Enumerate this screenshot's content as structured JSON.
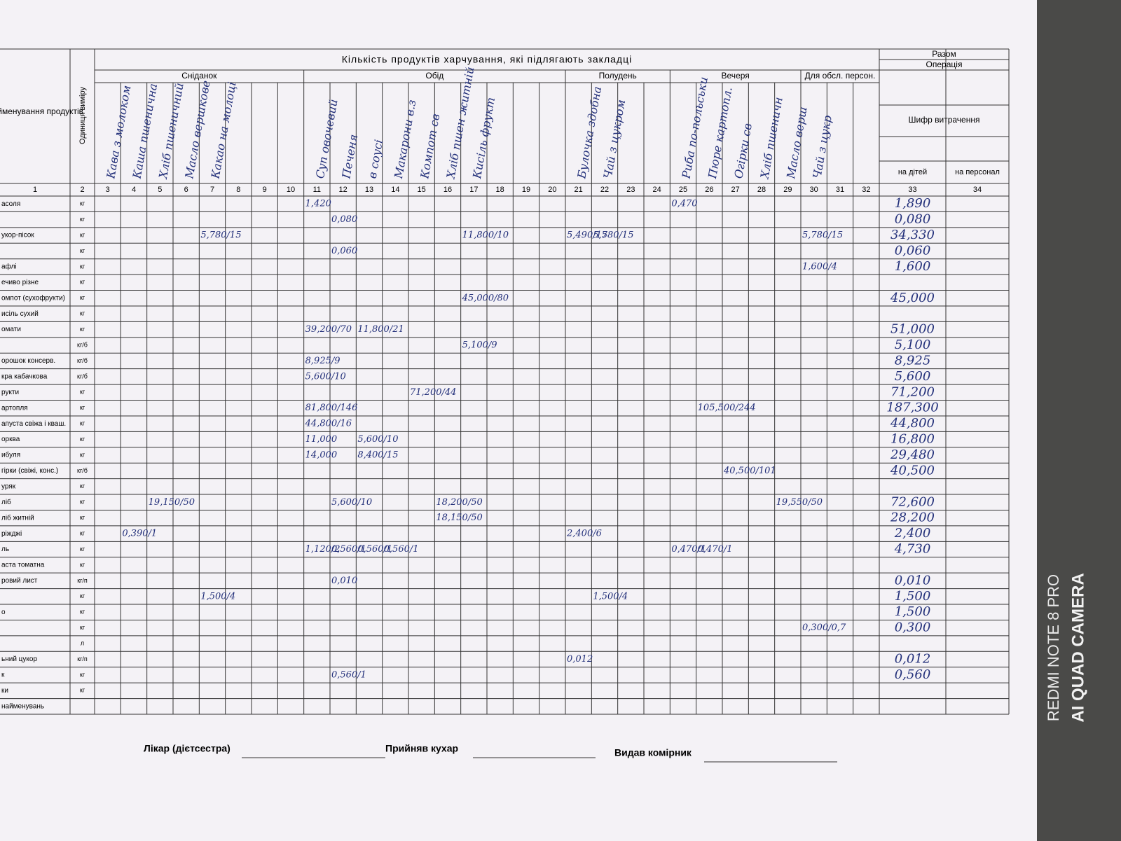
{
  "header": {
    "title": "Кількість продуктів харчування, які підлягають закладці",
    "name_col": "Найменування продуктів",
    "unit_col": "Одиниця виміру",
    "meals": [
      "Сніданок",
      "Обід",
      "Полудень",
      "Вечеря",
      "Для обсл. персон."
    ],
    "total": "Разом",
    "operation": "Операція",
    "code": "Шифр витрачення",
    "for_children": "на дітей",
    "for_staff": "на персонал",
    "column_numbers": [
      "1",
      "2",
      "3",
      "4",
      "5",
      "6",
      "7",
      "8",
      "9",
      "10",
      "11",
      "12",
      "13",
      "14",
      "15",
      "16",
      "17",
      "18",
      "19",
      "20",
      "21",
      "22",
      "23",
      "24",
      "25",
      "26",
      "27",
      "28",
      "29",
      "30",
      "31",
      "32",
      "33",
      "34"
    ],
    "dishes": {
      "3": "Кава з молоком",
      "4": "Каша пшенична",
      "5": "Хліб пшеничний",
      "6": "Масло вершкове",
      "7": "Какао на молоці",
      "11": "Суп овочевий",
      "12": "Печеня",
      "13": "в соусі",
      "14": "Макарони в.з",
      "15": "Компот св",
      "16": "Хліб пшен житній",
      "17": "Кисіль фрукт",
      "21": "Булочка здобна",
      "22": "Чай з цукром",
      "25": "Риба по-польськи",
      "26": "Пюре картопл.",
      "27": "Огірки св",
      "28": "Хліб пшеничн",
      "29": "Масло верш",
      "30": "Чай з цукр"
    }
  },
  "rows": [
    {
      "name": "асоля",
      "unit": "кг",
      "total": "1,890",
      "entries": {
        "11": "1,420",
        "25": "0,470"
      }
    },
    {
      "unit": "кг",
      "total": "0,080",
      "entries": {
        "12": "0,080"
      }
    },
    {
      "name": "укор-пісок",
      "unit": "кг",
      "total": "34,330",
      "entries": {
        "7": "5,780/15",
        "17": "11,800/10",
        "21": "5,490/15",
        "22": "5,780/15",
        "30": "5,780/15"
      }
    },
    {
      "unit": "кг",
      "total": "0,060",
      "entries": {
        "12": "0,060"
      }
    },
    {
      "name": "афлі",
      "unit": "кг",
      "total": "1,600",
      "entries": {
        "30": "1,600/4"
      }
    },
    {
      "name": "ечиво різне",
      "unit": "кг"
    },
    {
      "name": "омпот (сухофрукти)",
      "unit": "кг",
      "total": "45,000",
      "entries": {
        "17": "45,000/80"
      }
    },
    {
      "name": "исіль сухий",
      "unit": "кг"
    },
    {
      "name": "омати",
      "unit": "кг",
      "total": "51,000",
      "entries": {
        "11": "39,200/70",
        "13": "11,800/21"
      }
    },
    {
      "unit": "кг/б",
      "total": "5,100",
      "entries": {
        "17": "5,100/9"
      }
    },
    {
      "name": "орошок консерв.",
      "unit": "кг/б",
      "total": "8,925",
      "entries": {
        "11": "8,925/9"
      }
    },
    {
      "name": "кра кабачкова",
      "unit": "кг/б",
      "total": "5,600",
      "entries": {
        "11": "5,600/10"
      }
    },
    {
      "name": "рукти",
      "unit": "кг",
      "total": "71,200",
      "entries": {
        "15": "71,200/44"
      }
    },
    {
      "name": "артопля",
      "unit": "кг",
      "total": "187,300",
      "entries": {
        "11": "81,800/146",
        "26": "105,500/244"
      }
    },
    {
      "name": "апуста свіжа і кваш.",
      "unit": "кг",
      "total": "44,800",
      "entries": {
        "11": "44,800/16"
      }
    },
    {
      "name": "орква",
      "unit": "кг",
      "total": "16,800",
      "entries": {
        "11": "11,000",
        "13": "5,600/10"
      }
    },
    {
      "name": "ибуля",
      "unit": "кг",
      "total": "29,480",
      "entries": {
        "11": "14,000",
        "13": "8,400/15"
      }
    },
    {
      "name": "гірки (свіжі, конс.)",
      "unit": "кг/б",
      "total": "40,500",
      "entries": {
        "27": "40,500/101"
      }
    },
    {
      "name": "уряк",
      "unit": "кг"
    },
    {
      "name": "ліб",
      "unit": "кг",
      "total": "72,600",
      "entries": {
        "5": "19,150/50",
        "12": "5,600/10",
        "16": "18,200/50",
        "29": "19,550/50"
      }
    },
    {
      "name": "ліб житній",
      "unit": "кг",
      "total": "28,200",
      "entries": {
        "16": "18,150/50"
      }
    },
    {
      "name": "ріжджі",
      "unit": "кг",
      "total": "2,400",
      "entries": {
        "4": "0,390/1",
        "21": "2,400/6"
      }
    },
    {
      "name": "ль",
      "unit": "кг",
      "total": "4,730",
      "entries": {
        "11": "1,120/2",
        "12": "0,560/1",
        "13": "0,560/1",
        "14": "0,560/1",
        "25": "0,470/1",
        "26": "0,470/1"
      }
    },
    {
      "name": "аста томатна",
      "unit": "кг"
    },
    {
      "name": "ровий лист",
      "unit": "кг/п",
      "total": "0,010",
      "entries": {
        "12": "0,010"
      }
    },
    {
      "unit": "кг",
      "total": "1,500",
      "entries": {
        "7": "1,500/4",
        "22": "1,500/4"
      }
    },
    {
      "name": "о",
      "unit": "кг",
      "total": "1,500"
    },
    {
      "unit": "кг",
      "total": "0,300",
      "entries": {
        "30": "0,300/0,7"
      }
    },
    {
      "unit": "л"
    },
    {
      "name": "ьний цукор",
      "unit": "кг/п",
      "total": "0,012",
      "entries": {
        "21": "0,012"
      }
    },
    {
      "name": "к",
      "unit": "кг",
      "total": "0,560",
      "entries": {
        "12": "0,560/1"
      }
    },
    {
      "name": "ки",
      "unit": "кг"
    },
    {
      "name": "найменувань"
    }
  ],
  "footer": {
    "doctor": "Лікар (дієтсестра)",
    "cook": "Прийняв кухар",
    "storekeeper": "Видав комірник"
  },
  "watermark": {
    "model": "REDMI NOTE 8 PRO",
    "camera": "AI QUAD CAMERA"
  }
}
